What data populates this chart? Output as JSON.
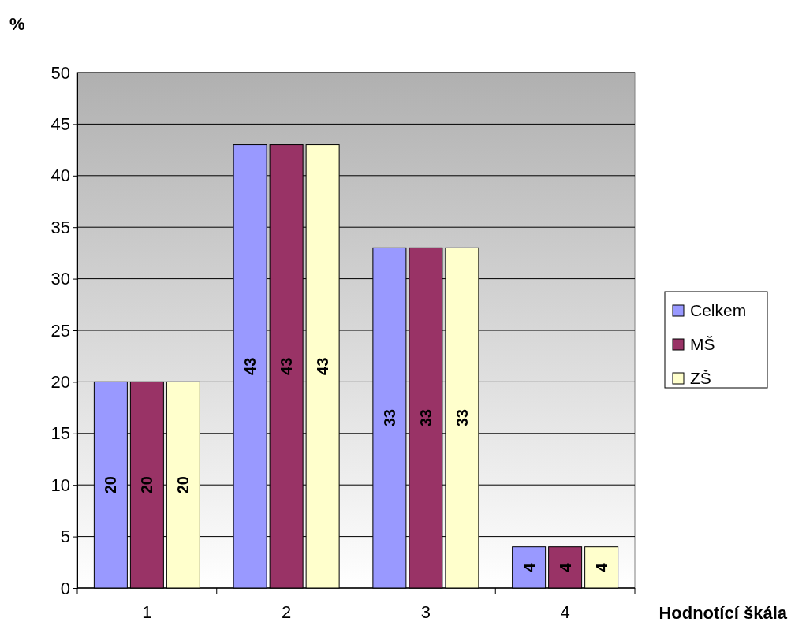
{
  "chart_data": {
    "type": "bar",
    "ylabel": "%",
    "xlabel": "Hodnotící škála",
    "categories": [
      "1",
      "2",
      "3",
      "4"
    ],
    "series": [
      {
        "name": "Celkem",
        "color": "#9999ff",
        "values": [
          20,
          43,
          33,
          4
        ]
      },
      {
        "name": "MŠ",
        "color": "#993366",
        "values": [
          20,
          43,
          33,
          4
        ]
      },
      {
        "name": "ZŠ",
        "color": "#ffffcc",
        "values": [
          20,
          43,
          33,
          4
        ]
      }
    ],
    "ylim": [
      0,
      50
    ],
    "yticks": [
      0,
      5,
      10,
      15,
      20,
      25,
      30,
      35,
      40,
      45,
      50
    ],
    "grid": "y",
    "legend": "right",
    "data_labels": true
  }
}
